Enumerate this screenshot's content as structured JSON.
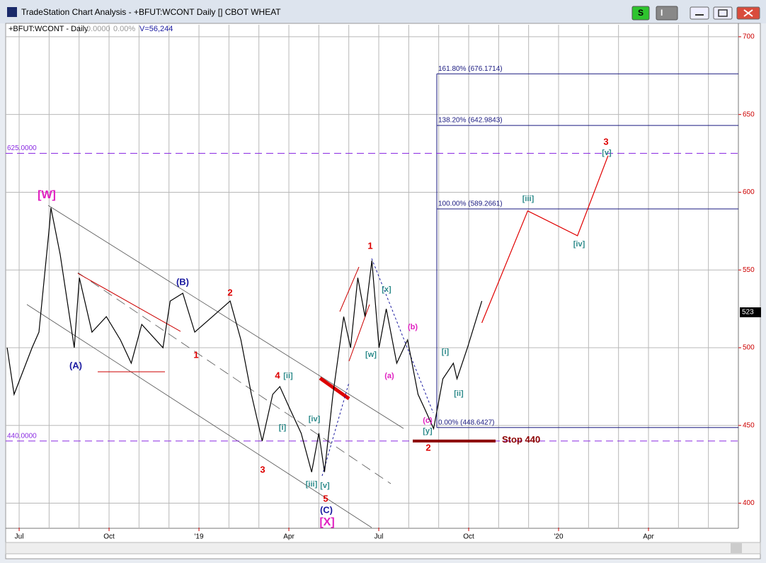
{
  "window": {
    "title": "TradeStation Chart Analysis - +BFUT:WCONT Daily [] CBOT WHEAT",
    "buttons": [
      "S",
      "I"
    ]
  },
  "chart_data": {
    "type": "line",
    "symbol_label": "+BFUT:WCONT - Daily",
    "net_change": "0.0000",
    "pct_change": "0.00%",
    "volume": "V=56,244",
    "last_price_label": "523",
    "xlim": [
      -0.45,
      24.0
    ],
    "xticks": [
      {
        "value": 0,
        "label": "Jul"
      },
      {
        "value": 3,
        "label": "Oct"
      },
      {
        "value": 6,
        "label": "'19"
      },
      {
        "value": 9,
        "label": "Apr"
      },
      {
        "value": 12,
        "label": "Jul"
      },
      {
        "value": 15,
        "label": "Oct"
      },
      {
        "value": 18,
        "label": "'20"
      },
      {
        "value": 21,
        "label": "Apr"
      }
    ],
    "ylim": [
      384.3,
      707.7
    ],
    "yticks": [
      400,
      450,
      500,
      550,
      600,
      650,
      700
    ],
    "grid": true,
    "series": [
      {
        "color": "#000000",
        "x": [
          -0.4,
          -0.17,
          0.43,
          0.66,
          1.02,
          1.06,
          1.37,
          1.84,
          2.01,
          2.43,
          2.91,
          3.38,
          3.74,
          4.09,
          4.8,
          5.04,
          5.46,
          5.86,
          6.45,
          7.04,
          7.4,
          7.75,
          8.11,
          8.46,
          8.7,
          9.05,
          9.41,
          9.76,
          10.0,
          10.19,
          10.47,
          10.83,
          11.06,
          11.3,
          11.54,
          11.77,
          12.01,
          12.25,
          12.6,
          12.96,
          13.31,
          13.55,
          13.83,
          14.14,
          14.49,
          14.61,
          14.96,
          15.44
        ],
        "values": [
          500,
          470,
          500,
          510,
          580,
          590,
          560,
          500,
          545,
          510,
          520,
          505,
          490,
          515,
          500,
          530,
          535,
          510,
          520,
          530,
          505,
          470,
          440,
          470,
          475,
          460,
          445,
          420,
          445,
          420,
          470,
          520,
          500,
          545,
          520,
          556,
          500,
          525,
          490,
          505,
          470,
          460,
          448,
          480,
          490,
          480,
          500,
          530
        ]
      },
      {
        "color": "#e00000",
        "x": [
          15.44,
          16.97,
          18.63,
          19.65
        ],
        "values": [
          516,
          588,
          572,
          623.5
        ]
      }
    ],
    "fib_levels": [
      {
        "value": 676.1714,
        "label": "161.80% (676.1714)"
      },
      {
        "value": 642.9843,
        "label": "138.20% (642.9843)"
      },
      {
        "value": 589.2661,
        "label": "100.00% (589.2661)"
      },
      {
        "value": 448.6427,
        "label": "0.00% (448.6427)"
      }
    ],
    "price_lines": [
      {
        "value": 625,
        "label": "625.0000"
      },
      {
        "value": 440,
        "label": "440.0000"
      }
    ],
    "stop": {
      "value": 440,
      "label": "Stop 440"
    },
    "annotations": [
      "[W]",
      "(A)",
      "(B)",
      "2",
      "1",
      "4",
      "[ii]",
      "[i]",
      "3",
      "[iv]",
      "[iii]",
      "[v]",
      "5",
      "(C)",
      "[X]",
      "1",
      "[x]",
      "[w]",
      "(b)",
      "(a)",
      "[i]",
      "[ii]",
      "(c)",
      "[y]",
      "2",
      "[iii]",
      "[iv]",
      "3",
      "[v]"
    ]
  }
}
